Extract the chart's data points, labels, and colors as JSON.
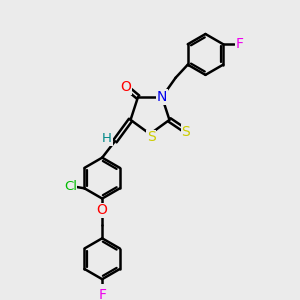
{
  "bg_color": "#ebebeb",
  "bond_color": "#000000",
  "bond_width": 1.8,
  "atom_colors": {
    "O": "#ff0000",
    "N": "#0000ee",
    "S": "#cccc00",
    "Cl": "#00bb00",
    "F": "#ee00ee",
    "H": "#008888"
  },
  "figsize": [
    3.0,
    3.0
  ],
  "dpi": 100
}
